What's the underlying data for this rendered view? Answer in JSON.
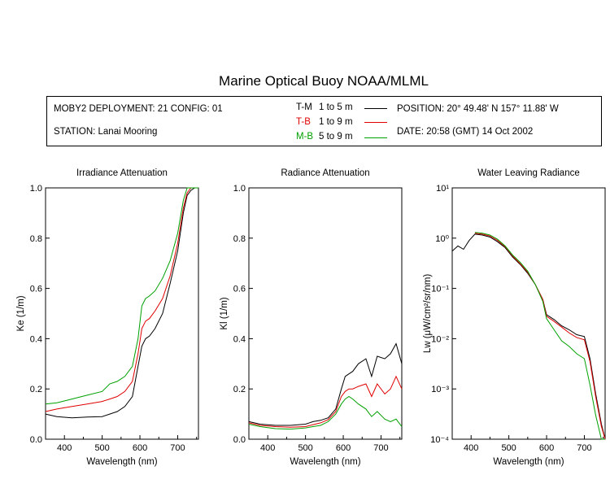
{
  "title": "Marine Optical Buoy NOAA/MLML",
  "info": {
    "deployment": "MOBY2 DEPLOYMENT: 21 CONFIG: 01",
    "station": "STATION: Lanai Mooring",
    "position": "POSITION: 20° 49.48' N   157° 11.88' W",
    "date": "DATE: 20:58 (GMT) 14 Oct 2002",
    "legend": [
      {
        "name": "T-M",
        "range": "1 to 5  m",
        "color": "#000000"
      },
      {
        "name": "T-B",
        "range": "1 to 9  m",
        "color": "#e00000"
      },
      {
        "name": "M-B",
        "range": "5 to 9  m",
        "color": "#00a000"
      }
    ]
  },
  "chart_data": [
    {
      "type": "line",
      "title": "Irradiance Attenuation",
      "xlabel": "Wavelength (nm)",
      "ylabel": "Ke  (1/m)",
      "xlim": [
        350,
        755
      ],
      "ylim": [
        0,
        1
      ],
      "xticks": [
        "400",
        "500",
        "600",
        "700"
      ],
      "yticks": [
        "0.0",
        "0.2",
        "0.4",
        "0.6",
        "0.8",
        "1.0"
      ],
      "series": [
        {
          "color": "#000000",
          "x": [
            350,
            380,
            420,
            460,
            500,
            520,
            540,
            560,
            580,
            595,
            605,
            615,
            625,
            640,
            660,
            680,
            700,
            715,
            725,
            735,
            745,
            755
          ],
          "y": [
            0.1,
            0.09,
            0.085,
            0.088,
            0.09,
            0.1,
            0.11,
            0.13,
            0.17,
            0.29,
            0.37,
            0.4,
            0.41,
            0.44,
            0.5,
            0.62,
            0.75,
            0.9,
            0.97,
            0.99,
            1.0,
            1.0
          ]
        },
        {
          "color": "#e00000",
          "x": [
            350,
            380,
            420,
            460,
            500,
            520,
            540,
            560,
            580,
            595,
            605,
            615,
            625,
            640,
            660,
            680,
            700,
            715,
            725,
            735,
            745,
            755
          ],
          "y": [
            0.11,
            0.12,
            0.13,
            0.14,
            0.15,
            0.16,
            0.17,
            0.19,
            0.23,
            0.34,
            0.44,
            0.47,
            0.48,
            0.51,
            0.56,
            0.65,
            0.78,
            0.92,
            0.98,
            1.0,
            1.0,
            1.0
          ]
        },
        {
          "color": "#00a000",
          "x": [
            350,
            380,
            420,
            460,
            500,
            520,
            540,
            560,
            580,
            595,
            605,
            615,
            625,
            640,
            660,
            680,
            700,
            715,
            725,
            735,
            745,
            755
          ],
          "y": [
            0.14,
            0.145,
            0.16,
            0.175,
            0.19,
            0.22,
            0.23,
            0.25,
            0.29,
            0.4,
            0.53,
            0.56,
            0.57,
            0.59,
            0.64,
            0.71,
            0.82,
            0.95,
            1.0,
            1.0,
            1.0,
            1.0
          ]
        }
      ]
    },
    {
      "type": "line",
      "title": "Radiance Attenuation",
      "xlabel": "Wavelength (nm)",
      "ylabel": "Kl  (1/m)",
      "xlim": [
        350,
        755
      ],
      "ylim": [
        0,
        1
      ],
      "xticks": [
        "400",
        "500",
        "600",
        "700"
      ],
      "yticks": [
        "0.0",
        "0.2",
        "0.4",
        "0.6",
        "0.8",
        "1.0"
      ],
      "series": [
        {
          "color": "#000000",
          "x": [
            350,
            380,
            420,
            460,
            500,
            520,
            540,
            560,
            580,
            595,
            605,
            615,
            625,
            640,
            660,
            675,
            690,
            710,
            725,
            740,
            755
          ],
          "y": [
            0.07,
            0.06,
            0.055,
            0.055,
            0.06,
            0.07,
            0.075,
            0.085,
            0.12,
            0.2,
            0.25,
            0.26,
            0.27,
            0.3,
            0.32,
            0.25,
            0.33,
            0.32,
            0.34,
            0.38,
            0.3
          ]
        },
        {
          "color": "#e00000",
          "x": [
            350,
            380,
            420,
            460,
            500,
            520,
            540,
            560,
            580,
            595,
            605,
            615,
            625,
            640,
            660,
            675,
            690,
            710,
            725,
            740,
            755
          ],
          "y": [
            0.065,
            0.055,
            0.05,
            0.048,
            0.05,
            0.058,
            0.065,
            0.078,
            0.11,
            0.17,
            0.19,
            0.2,
            0.2,
            0.21,
            0.22,
            0.17,
            0.22,
            0.18,
            0.2,
            0.25,
            0.2
          ]
        },
        {
          "color": "#00a000",
          "x": [
            350,
            380,
            420,
            460,
            500,
            520,
            540,
            560,
            580,
            595,
            605,
            615,
            625,
            640,
            660,
            675,
            690,
            710,
            725,
            740,
            755
          ],
          "y": [
            0.06,
            0.05,
            0.042,
            0.04,
            0.045,
            0.05,
            0.055,
            0.07,
            0.1,
            0.14,
            0.16,
            0.17,
            0.16,
            0.14,
            0.12,
            0.09,
            0.11,
            0.08,
            0.07,
            0.08,
            0.05
          ]
        }
      ]
    },
    {
      "type": "line",
      "title": "Water Leaving Radiance",
      "xlabel": "Wavelength (nm)",
      "ylabel": "Lw  (μW/cm²/sr/nm)",
      "xlim": [
        350,
        755
      ],
      "ylim": [
        0.0001,
        10
      ],
      "log_y": true,
      "xticks": [
        "400",
        "500",
        "600",
        "700"
      ],
      "yticks": [
        "10¹",
        "10⁰",
        "10⁻¹",
        "10⁻²",
        "10⁻³",
        "10⁻⁴"
      ],
      "series": [
        {
          "color": "#000000",
          "x": [
            350,
            365,
            380,
            395,
            410,
            430,
            450,
            470,
            490,
            510,
            530,
            550,
            570,
            590,
            600,
            620,
            640,
            660,
            680,
            700,
            715,
            730,
            745,
            755
          ],
          "y": [
            0.55,
            0.7,
            0.6,
            0.9,
            1.2,
            1.15,
            1.05,
            0.85,
            0.65,
            0.42,
            0.3,
            0.2,
            0.12,
            0.06,
            0.03,
            0.024,
            0.018,
            0.015,
            0.012,
            0.011,
            0.004,
            0.0008,
            0.0002,
            0.0001
          ]
        },
        {
          "color": "#e00000",
          "x": [
            410,
            430,
            450,
            470,
            490,
            510,
            530,
            550,
            570,
            590,
            600,
            620,
            640,
            660,
            680,
            700,
            715,
            730,
            745,
            755
          ],
          "y": [
            1.25,
            1.2,
            1.1,
            0.9,
            0.68,
            0.44,
            0.31,
            0.21,
            0.12,
            0.06,
            0.028,
            0.022,
            0.017,
            0.013,
            0.0105,
            0.0095,
            0.0035,
            0.0007,
            0.00018,
            0.0001
          ]
        },
        {
          "color": "#00a000",
          "x": [
            410,
            430,
            450,
            470,
            490,
            510,
            530,
            550,
            570,
            590,
            600,
            620,
            640,
            660,
            680,
            700,
            715,
            730,
            745,
            755
          ],
          "y": [
            1.3,
            1.25,
            1.15,
            0.95,
            0.7,
            0.46,
            0.33,
            0.22,
            0.12,
            0.055,
            0.025,
            0.015,
            0.009,
            0.007,
            0.005,
            0.004,
            0.0012,
            0.0003,
            0.0001,
            0.0001
          ]
        }
      ]
    }
  ]
}
